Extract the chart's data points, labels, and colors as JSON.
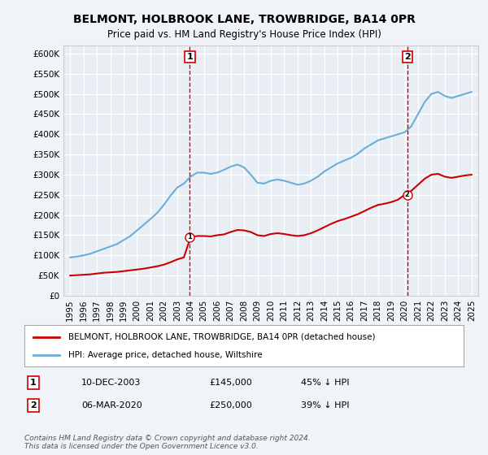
{
  "title": "BELMONT, HOLBROOK LANE, TROWBRIDGE, BA14 0PR",
  "subtitle": "Price paid vs. HM Land Registry's House Price Index (HPI)",
  "legend_line1": "BELMONT, HOLBROOK LANE, TROWBRIDGE, BA14 0PR (detached house)",
  "legend_line2": "HPI: Average price, detached house, Wiltshire",
  "annotation1_label": "1",
  "annotation1_date": "10-DEC-2003",
  "annotation1_price": "£145,000",
  "annotation1_hpi": "45% ↓ HPI",
  "annotation1_year": 2003.95,
  "annotation1_value": 145000,
  "annotation2_label": "2",
  "annotation2_date": "06-MAR-2020",
  "annotation2_price": "£250,000",
  "annotation2_hpi": "39% ↓ HPI",
  "annotation2_year": 2020.2,
  "annotation2_value": 250000,
  "copyright": "Contains HM Land Registry data © Crown copyright and database right 2024.\nThis data is licensed under the Open Government Licence v3.0.",
  "ylim": [
    0,
    620000
  ],
  "yticks": [
    0,
    50000,
    100000,
    150000,
    200000,
    250000,
    300000,
    350000,
    400000,
    450000,
    500000,
    550000,
    600000
  ],
  "xlim_start": 1994.5,
  "xlim_end": 2025.5,
  "bg_color": "#f0f4f8",
  "plot_bg_color": "#e8eef4",
  "grid_color": "#ffffff",
  "hpi_color": "#6baed6",
  "price_color": "#cc0000",
  "vline_color": "#cc0000",
  "hpi_data_x": [
    1995,
    1995.5,
    1996,
    1996.5,
    1997,
    1997.5,
    1998,
    1998.5,
    1999,
    1999.5,
    2000,
    2000.5,
    2001,
    2001.5,
    2002,
    2002.5,
    2003,
    2003.5,
    2004,
    2004.5,
    2005,
    2005.5,
    2006,
    2006.5,
    2007,
    2007.5,
    2008,
    2008.5,
    2009,
    2009.5,
    2010,
    2010.5,
    2011,
    2011.5,
    2012,
    2012.5,
    2013,
    2013.5,
    2014,
    2014.5,
    2015,
    2015.5,
    2016,
    2016.5,
    2017,
    2017.5,
    2018,
    2018.5,
    2019,
    2019.5,
    2020,
    2020.5,
    2021,
    2021.5,
    2022,
    2022.5,
    2023,
    2023.5,
    2024,
    2024.5,
    2025
  ],
  "hpi_data_y": [
    95000,
    97000,
    100000,
    104000,
    110000,
    116000,
    122000,
    128000,
    138000,
    148000,
    162000,
    176000,
    190000,
    205000,
    225000,
    248000,
    268000,
    278000,
    295000,
    305000,
    305000,
    302000,
    305000,
    312000,
    320000,
    325000,
    318000,
    300000,
    280000,
    278000,
    285000,
    288000,
    285000,
    280000,
    275000,
    278000,
    285000,
    295000,
    308000,
    318000,
    328000,
    335000,
    342000,
    352000,
    365000,
    375000,
    385000,
    390000,
    395000,
    400000,
    405000,
    420000,
    450000,
    480000,
    500000,
    505000,
    495000,
    490000,
    495000,
    500000,
    505000
  ],
  "price_data_x": [
    1995,
    1995.5,
    1996,
    1996.5,
    1997,
    1997.5,
    1998,
    1998.5,
    1999,
    1999.5,
    2000,
    2000.5,
    2001,
    2001.5,
    2002,
    2002.5,
    2003,
    2003.5,
    2004,
    2004.5,
    2005,
    2005.5,
    2006,
    2006.5,
    2007,
    2007.5,
    2008,
    2008.5,
    2009,
    2009.5,
    2010,
    2010.5,
    2011,
    2011.5,
    2012,
    2012.5,
    2013,
    2013.5,
    2014,
    2014.5,
    2015,
    2015.5,
    2016,
    2016.5,
    2017,
    2017.5,
    2018,
    2018.5,
    2019,
    2019.5,
    2020,
    2020.5,
    2021,
    2021.5,
    2022,
    2022.5,
    2023,
    2023.5,
    2024,
    2024.5,
    2025
  ],
  "price_data_y": [
    50000,
    51000,
    52000,
    53000,
    55000,
    57000,
    58000,
    59000,
    61000,
    63000,
    65000,
    67000,
    70000,
    73000,
    77000,
    83000,
    90000,
    95000,
    145000,
    148000,
    148000,
    147000,
    150000,
    152000,
    158000,
    163000,
    162000,
    158000,
    150000,
    148000,
    153000,
    155000,
    153000,
    150000,
    148000,
    150000,
    155000,
    162000,
    170000,
    178000,
    185000,
    190000,
    196000,
    202000,
    210000,
    218000,
    225000,
    228000,
    232000,
    238000,
    250000,
    260000,
    275000,
    290000,
    300000,
    302000,
    295000,
    292000,
    295000,
    298000,
    300000
  ]
}
